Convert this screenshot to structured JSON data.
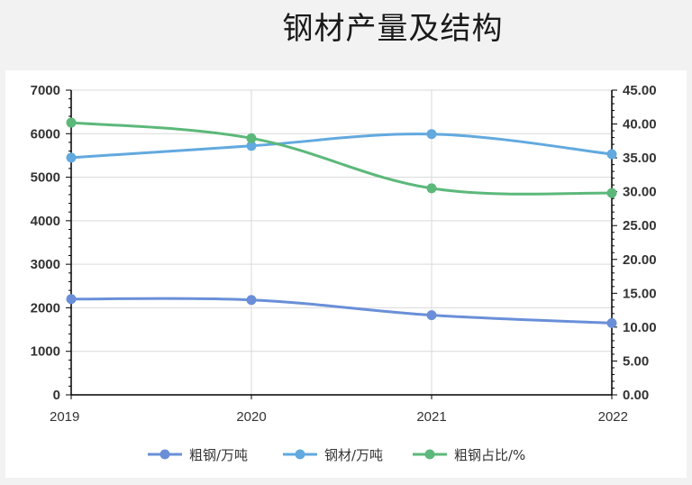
{
  "title": "钢材产量及结构",
  "chart_data": {
    "type": "line",
    "title": "钢材产量及结构",
    "categories": [
      "2019",
      "2020",
      "2021",
      "2022"
    ],
    "y_left": {
      "ylim": [
        0,
        7000
      ],
      "ticks": [
        "0",
        "1000",
        "2000",
        "3000",
        "4000",
        "5000",
        "6000",
        "7000"
      ]
    },
    "y_right": {
      "ylim": [
        0,
        45
      ],
      "ticks": [
        "0.00",
        "5.00",
        "10.00",
        "15.00",
        "20.00",
        "25.00",
        "30.00",
        "35.00",
        "40.00",
        "45.00"
      ]
    },
    "grid": true,
    "legend_position": "bottom",
    "series": [
      {
        "name": "粗钢/万吨",
        "axis": "left",
        "color": "#6a8fd8",
        "values": [
          2200,
          2180,
          1830,
          1650
        ]
      },
      {
        "name": "钢材/万吨",
        "axis": "left",
        "color": "#62a9df",
        "values": [
          5450,
          5720,
          5990,
          5530
        ]
      },
      {
        "name": "粗钢占比/%",
        "axis": "right",
        "color": "#5cb87a",
        "values": [
          40.2,
          37.9,
          30.5,
          29.8
        ]
      }
    ]
  }
}
